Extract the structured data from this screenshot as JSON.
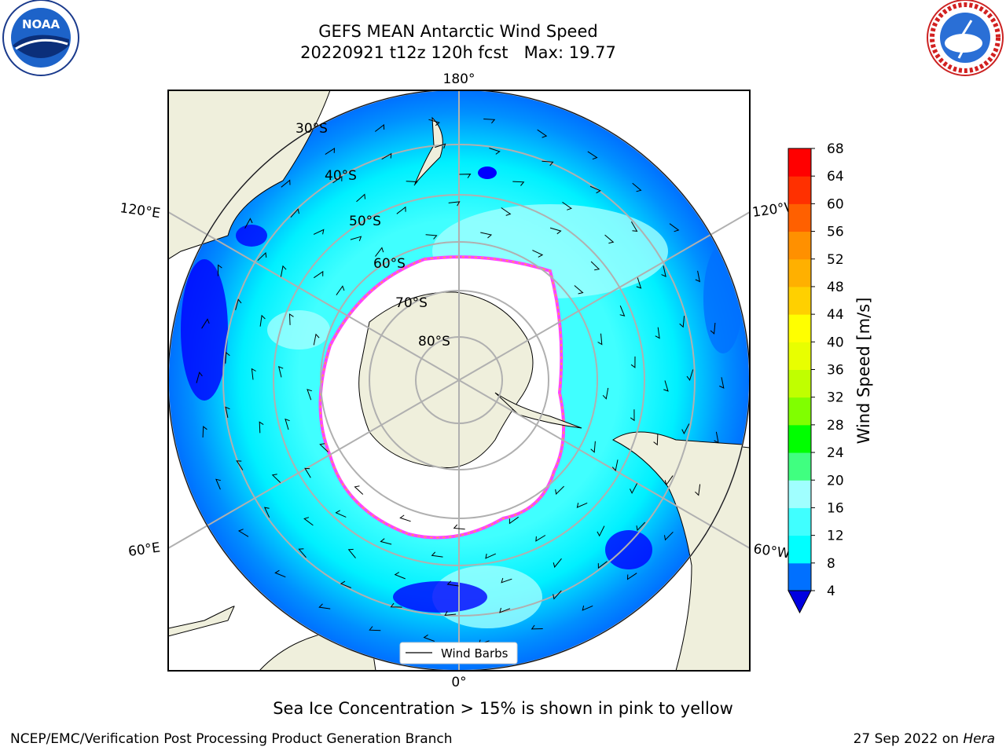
{
  "header": {
    "title_line1": "GEFS MEAN Antarctic Wind Speed",
    "title_line2": "20220921 t12z 120h fcst   Max: 19.77"
  },
  "logos": {
    "left": "noaa-logo",
    "right": "national-weather-service-logo"
  },
  "map": {
    "projection": "south-polar-stereographic",
    "longitude_labels": {
      "top": "180°",
      "bottom": "0°",
      "left_upper": "120°E",
      "left_lower": "60°E",
      "right_upper": "120°W",
      "right_lower": "60°W"
    },
    "latitude_labels": [
      "30°S",
      "40°S",
      "50°S",
      "60°S",
      "70°S",
      "80°S"
    ],
    "legend_label": "Wind Barbs",
    "colors": {
      "land": "#efefdc",
      "ice_outline": "#ff44ff",
      "ice_fill_edge": "#ffb030",
      "grid": "#b0b0b0"
    }
  },
  "colorbar": {
    "label": "Wind Speed [m/s]",
    "ticks": [
      "4",
      "8",
      "12",
      "16",
      "20",
      "24",
      "28",
      "32",
      "36",
      "40",
      "44",
      "48",
      "52",
      "56",
      "60",
      "64",
      "68"
    ],
    "colors": [
      "#0000ff",
      "#0070ff",
      "#00ffff",
      "#40ffff",
      "#a0ffff",
      "#40ff80",
      "#00ff00",
      "#80ff00",
      "#c0ff00",
      "#e8ff00",
      "#ffff00",
      "#ffd000",
      "#ffb000",
      "#ff9000",
      "#ff6000",
      "#ff3000",
      "#ff0000"
    ],
    "under_color": "#0000e0"
  },
  "caption": "Sea Ice Concentration > 15% is shown in pink to yellow",
  "footer": {
    "left": "NCEP/EMC/Verification Post Processing Product Generation Branch",
    "right_date": "27 Sep 2022 on",
    "right_host": "Hera"
  }
}
